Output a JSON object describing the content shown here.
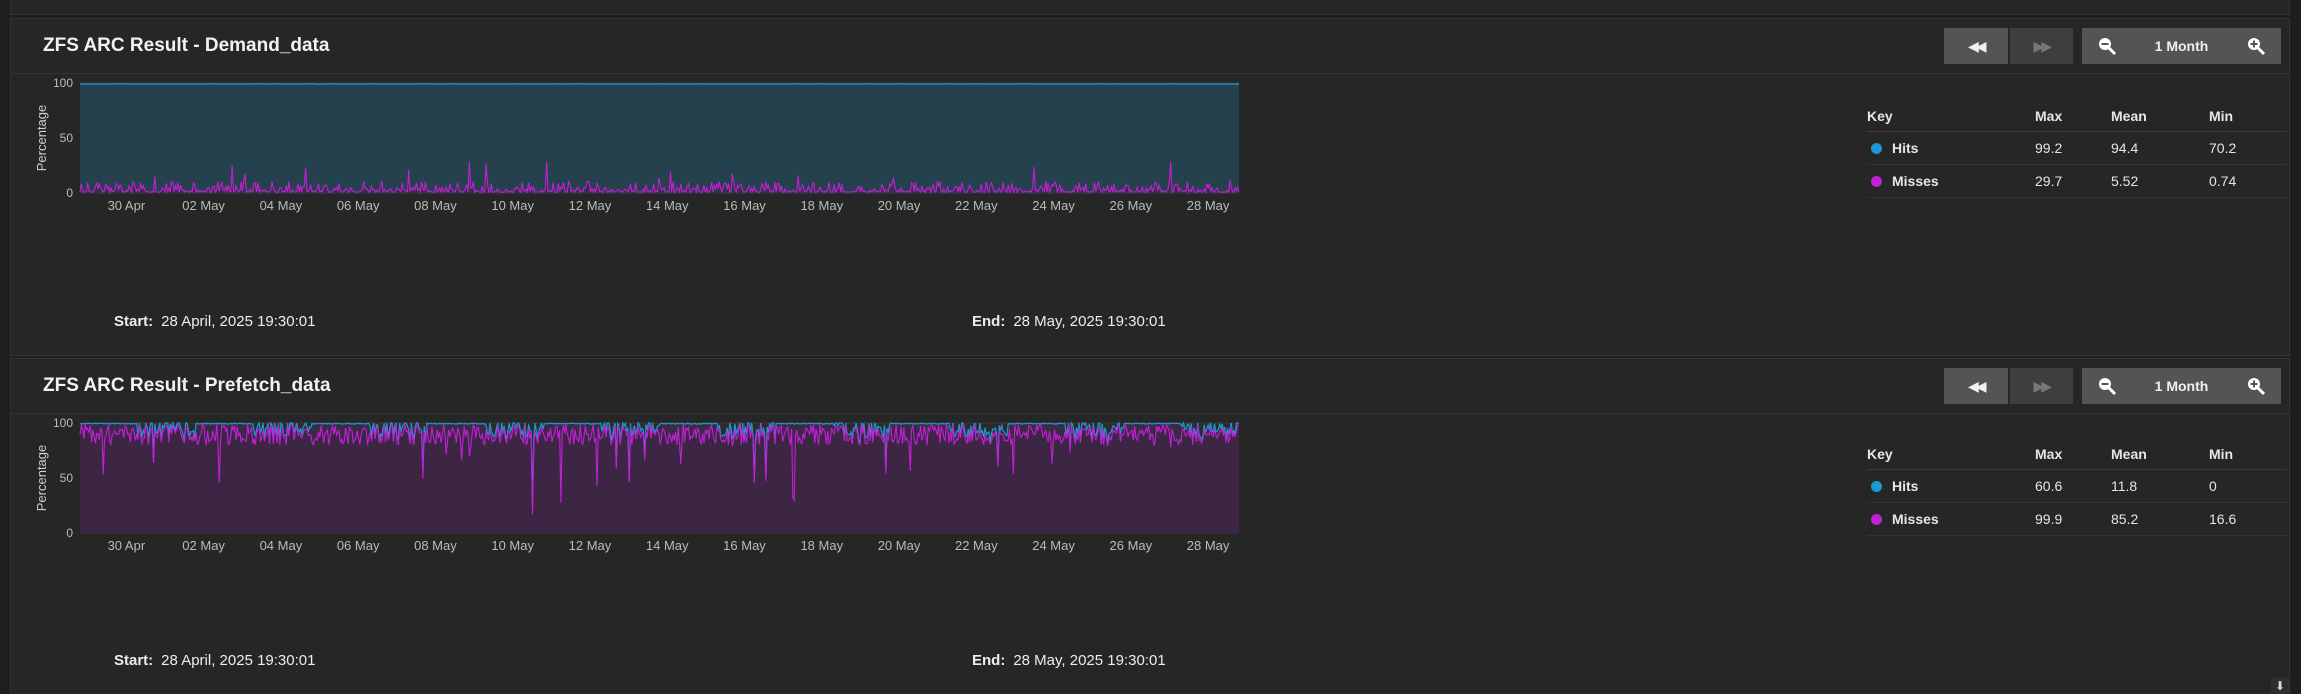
{
  "colors": {
    "hits": "#1b9ad1",
    "misses": "#c21fd6"
  },
  "panels": [
    {
      "title": "ZFS ARC Result - Demand_data",
      "zoom_label": "1 Month",
      "start_label": "Start:",
      "start_value": "28 April, 2025 19:30:01",
      "end_label": "End:",
      "end_value": "28 May, 2025 19:30:01",
      "legend": {
        "headers": [
          "Key",
          "Max",
          "Mean",
          "Min"
        ],
        "rows": [
          {
            "name": "Hits",
            "max": "99.2",
            "mean": "94.4",
            "min": "70.2"
          },
          {
            "name": "Misses",
            "max": "29.7",
            "mean": "5.52",
            "min": "0.74"
          }
        ]
      }
    },
    {
      "title": "ZFS ARC Result - Prefetch_data",
      "zoom_label": "1 Month",
      "start_label": "Start:",
      "start_value": "28 April, 2025 19:30:01",
      "end_label": "End:",
      "end_value": "28 May, 2025 19:30:01",
      "legend": {
        "headers": [
          "Key",
          "Max",
          "Mean",
          "Min"
        ],
        "rows": [
          {
            "name": "Hits",
            "max": "60.6",
            "mean": "11.8",
            "min": "0"
          },
          {
            "name": "Misses",
            "max": "99.9",
            "mean": "85.2",
            "min": "16.6"
          }
        ]
      }
    }
  ],
  "chart_data": [
    {
      "type": "area",
      "ylabel": "Percentage",
      "ylim": [
        0,
        100
      ],
      "yticks": [
        "0",
        "50",
        "100"
      ],
      "xticks": [
        "30 Apr",
        "02 May",
        "04 May",
        "06 May",
        "08 May",
        "10 May",
        "12 May",
        "14 May",
        "16 May",
        "18 May",
        "20 May",
        "22 May",
        "24 May",
        "26 May",
        "28 May"
      ],
      "x_range_days": [
        0,
        30
      ],
      "first_tick_day": 1.2,
      "tick_interval_days": 2,
      "grid": true,
      "series": [
        {
          "name": "Hits",
          "max": 99.2,
          "mean": 94.4,
          "min": 70.2
        },
        {
          "name": "Misses",
          "max": 29.7,
          "mean": 5.52,
          "min": 0.74
        }
      ]
    },
    {
      "type": "area",
      "ylabel": "Percentage",
      "ylim": [
        0,
        100
      ],
      "yticks": [
        "0",
        "50",
        "100"
      ],
      "xticks": [
        "30 Apr",
        "02 May",
        "04 May",
        "06 May",
        "08 May",
        "10 May",
        "12 May",
        "14 May",
        "16 May",
        "18 May",
        "20 May",
        "22 May",
        "24 May",
        "26 May",
        "28 May"
      ],
      "x_range_days": [
        0,
        30
      ],
      "first_tick_day": 1.2,
      "tick_interval_days": 2,
      "grid": true,
      "series": [
        {
          "name": "Hits",
          "max": 60.6,
          "mean": 11.8,
          "min": 0
        },
        {
          "name": "Misses",
          "max": 99.9,
          "mean": 85.2,
          "min": 16.6
        }
      ]
    }
  ]
}
